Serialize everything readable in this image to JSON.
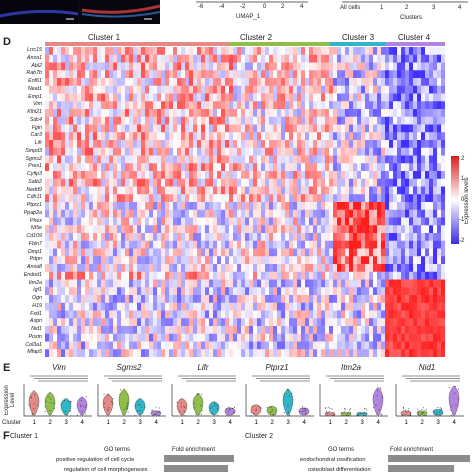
{
  "panel_d": {
    "letter": "D",
    "clusters": [
      {
        "name": "Cluster 1",
        "color": "#e38a86"
      },
      {
        "name": "Cluster 2",
        "color": "#8fbf4a"
      },
      {
        "name": "Cluster 3",
        "color": "#31b6c7"
      },
      {
        "name": "Cluster 4",
        "color": "#b284e0"
      }
    ],
    "genes": [
      "Lrrc15",
      "Anxa1",
      "Abl2",
      "Rab7b",
      "Enf61",
      "Neat1",
      "Emp1",
      "Vim",
      "Klhl21",
      "Sdc4",
      "Fgin",
      "Car3",
      "Lifr",
      "Smpd3",
      "Sgms2",
      "Prex1",
      "Cyfip3",
      "Satb2",
      "Nedd9",
      "Cdh11",
      "Ptprz1",
      "Ppap2a",
      "Phex",
      "Nt5e",
      "Cd109",
      "Fbln7",
      "Dmp1",
      "Pdpn",
      "Anxa8",
      "Endod1",
      "Itm2a",
      "Igf1",
      "Ogn",
      "H19",
      "Fxd1",
      "Aspn",
      "Nid1",
      "Postn",
      "Col3a1",
      "Mfap5"
    ],
    "legend": {
      "title": "Expression levels",
      "ticks": [
        "2",
        "1",
        "0",
        "-1",
        "-2"
      ]
    }
  },
  "top_strip": {
    "umap_label": "UMAP_1",
    "umap_ticks": [
      "-6",
      "-4",
      "-2",
      "0",
      "2",
      "4"
    ],
    "bar_labels": [
      "All cells",
      "1",
      "2",
      "3",
      "4"
    ],
    "bar_axis_label": "Clusters"
  },
  "panel_e": {
    "letter": "E",
    "ylabel": "Expression Level",
    "xlabel": "Cluster",
    "x_ticks": [
      "1",
      "2",
      "3",
      "4"
    ],
    "genes": [
      "Vim",
      "Sgms2",
      "Lifr",
      "Ptprz1",
      "Itm2a",
      "Nid1"
    ]
  },
  "panel_f": {
    "letter": "F",
    "left": {
      "cluster": "Cluster 1",
      "col1": "GO terms",
      "col2": "Fold enrichment",
      "terms": [
        "positive regulation of cell cycle",
        "regulation of cell morphogenesis"
      ]
    },
    "right": {
      "cluster": "Cluster 2",
      "col1": "GO terms",
      "col2": "Fold enrichment",
      "terms": [
        "endochondral ossification",
        "osteoblast differentiation"
      ]
    }
  }
}
